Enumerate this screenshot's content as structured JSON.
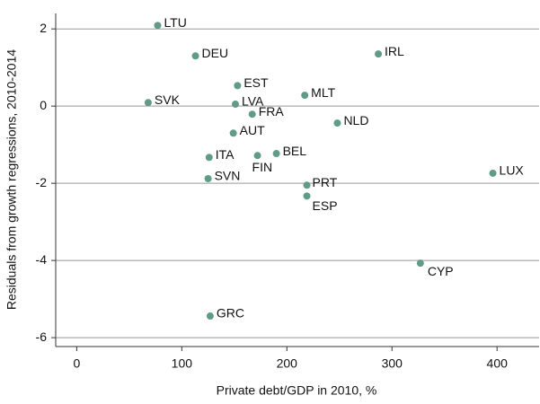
{
  "chart_data": {
    "type": "scatter",
    "xlabel": "Private debt/GDP in 2010, %",
    "ylabel": "Residuals from growth regressions, 2010-2014",
    "series": [
      {
        "color": "#5f9b86",
        "labels": [
          "LTU",
          "DEU",
          "IRL",
          "EST",
          "SVK",
          "LVA",
          "MLT",
          "FRA",
          "NLD",
          "AUT",
          "BEL",
          "ITA",
          "FIN",
          "SVN",
          "PRT",
          "ESP",
          "LUX",
          "CYP",
          "GRC"
        ],
        "x": [
          77,
          113,
          287,
          153,
          68,
          151,
          217,
          167,
          248,
          149,
          190,
          126,
          172,
          125,
          219,
          219,
          396,
          327,
          127
        ],
        "values": [
          2.09,
          1.3,
          1.35,
          0.53,
          0.09,
          0.05,
          0.28,
          -0.21,
          -0.44,
          -0.7,
          -1.23,
          -1.33,
          -1.28,
          -1.88,
          -2.05,
          -2.33,
          -1.74,
          -4.07,
          -5.44
        ]
      }
    ],
    "xlim": [
      -20,
      440
    ],
    "xticks": [
      0,
      100,
      200,
      300,
      400
    ],
    "ylim": [
      -6.23,
      2.4
    ],
    "yticks": [
      -6,
      -4,
      -2,
      0,
      2
    ],
    "grid": true
  }
}
